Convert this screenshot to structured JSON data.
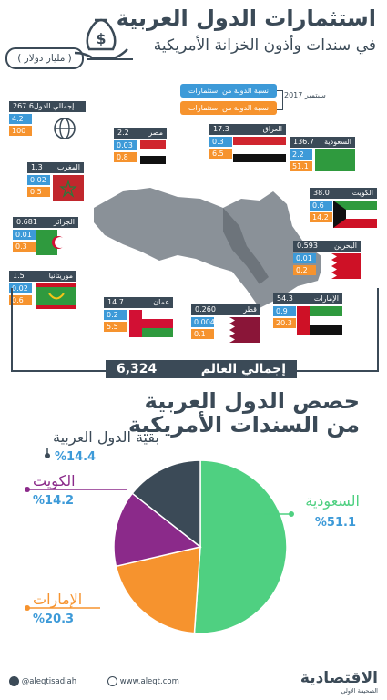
{
  "header": {
    "title": "استثمارات الدول العربية",
    "subtitle": "في سندات وأذون الخزانة الأمريكية",
    "unit": "( مليار دولار )"
  },
  "legend": {
    "world_share": "نسبة الدولة من استثمارات العالم",
    "arab_share": "نسبة الدولة من استثمارات العرب",
    "date": "سبتمبر 2017"
  },
  "countries": [
    {
      "name": "إجمالي الدول العربية",
      "value": "267.6",
      "world": "4.2",
      "arab": "100"
    },
    {
      "name": "مصر",
      "value": "2.2",
      "world": "0.03",
      "arab": "0.8"
    },
    {
      "name": "العراق",
      "value": "17.3",
      "world": "0.3",
      "arab": "6.5"
    },
    {
      "name": "السعودية",
      "value": "136.7",
      "world": "2.2",
      "arab": "51.1"
    },
    {
      "name": "المغرب",
      "value": "1.3",
      "world": "0.02",
      "arab": "0.5"
    },
    {
      "name": "الكويت",
      "value": "38.0",
      "world": "0.6",
      "arab": "14.2"
    },
    {
      "name": "الجزائر",
      "value": "0.681",
      "world": "0.01",
      "arab": "0.3"
    },
    {
      "name": "البحرين",
      "value": "0.593",
      "world": "0.01",
      "arab": "0.2"
    },
    {
      "name": "موريتانيا",
      "value": "1.5",
      "world": "0.02",
      "arab": "0.6"
    },
    {
      "name": "عمان",
      "value": "14.7",
      "world": "0.2",
      "arab": "5.5"
    },
    {
      "name": "قطر",
      "value": "0.260",
      "world": "0.004",
      "arab": "0.1"
    },
    {
      "name": "الإمارات",
      "value": "54.3",
      "world": "0.9",
      "arab": "20.3"
    }
  ],
  "world_total": {
    "label": "إجمالي العالم",
    "value": "6,324"
  },
  "pie_section": {
    "title_line1": "حصص الدول العربية",
    "title_line2": "من السندات الأمريكية"
  },
  "chart_data": {
    "type": "pie",
    "title": "حصص الدول العربية من السندات الأمريكية",
    "categories": [
      "السعودية",
      "الإمارات",
      "الكويت",
      "بقية الدول العربية"
    ],
    "values": [
      51.1,
      20.3,
      14.2,
      14.4
    ],
    "labels": [
      "%51.1",
      "%20.3",
      "%14.2",
      "%14.4"
    ],
    "colors": [
      "#4fd081",
      "#f6932e",
      "#8b2a8a",
      "#3b4a57"
    ]
  },
  "footer": {
    "twitter": "@aleqtisadiah",
    "website": "www.aleqt.com",
    "brand": "الاقتصادية",
    "brand_sub": "الصحيفة الأولى"
  },
  "colors": {
    "dark": "#3b4a57",
    "blue": "#3d9ad8",
    "orange": "#f6932e"
  }
}
